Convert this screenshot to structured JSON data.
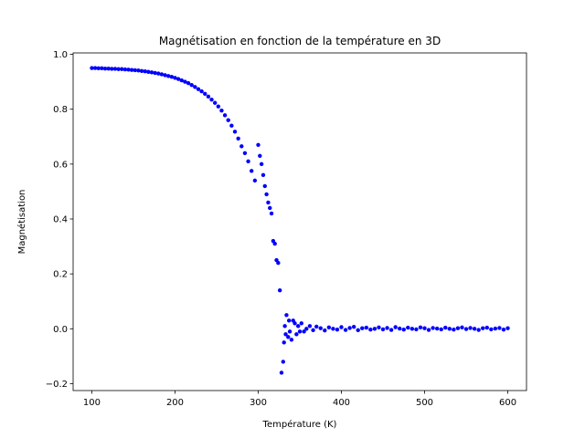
{
  "chart_data": {
    "type": "scatter",
    "title": "Magnétisation en fonction de la température en 3D",
    "xlabel": "Température (K)",
    "ylabel": "Magnétisation",
    "xlim": [
      77.5,
      622.5
    ],
    "ylim": [
      -0.225,
      1.005
    ],
    "xticks": [
      100,
      200,
      300,
      400,
      500,
      600
    ],
    "yticks": [
      -0.2,
      0.0,
      0.2,
      0.4,
      0.6,
      0.8,
      1.0
    ],
    "xtick_labels": [
      "100",
      "200",
      "300",
      "400",
      "500",
      "600"
    ],
    "ytick_labels": [
      "−0.2",
      "0.0",
      "0.2",
      "0.4",
      "0.6",
      "0.8",
      "1.0"
    ],
    "grid": false,
    "series": [
      {
        "color": "#0000ff",
        "x": [
          100,
          104,
          108,
          112,
          116,
          120,
          124,
          128,
          132,
          136,
          140,
          144,
          148,
          152,
          156,
          160,
          164,
          168,
          172,
          176,
          180,
          184,
          188,
          192,
          196,
          200,
          204,
          208,
          212,
          216,
          220,
          224,
          228,
          232,
          236,
          240,
          244,
          248,
          252,
          256,
          260,
          264,
          268,
          272,
          276,
          280,
          284,
          288,
          292,
          296,
          300,
          302,
          304,
          306,
          308,
          310,
          312,
          314,
          316,
          318,
          320,
          322,
          324,
          326,
          328,
          330,
          331,
          332,
          333,
          334,
          336,
          337,
          338,
          340,
          342,
          344,
          346,
          348,
          350,
          352,
          355,
          358,
          362,
          366,
          370,
          375,
          380,
          385,
          390,
          395,
          400,
          405,
          410,
          415,
          420,
          425,
          430,
          435,
          440,
          445,
          450,
          455,
          460,
          465,
          470,
          475,
          480,
          485,
          490,
          495,
          500,
          505,
          510,
          515,
          520,
          525,
          530,
          535,
          540,
          545,
          550,
          555,
          560,
          565,
          570,
          575,
          580,
          585,
          590,
          595,
          600
        ],
        "y": [
          0.95,
          0.95,
          0.949,
          0.949,
          0.948,
          0.948,
          0.947,
          0.947,
          0.946,
          0.946,
          0.945,
          0.944,
          0.943,
          0.942,
          0.941,
          0.939,
          0.938,
          0.936,
          0.934,
          0.932,
          0.93,
          0.927,
          0.924,
          0.921,
          0.918,
          0.914,
          0.91,
          0.905,
          0.9,
          0.895,
          0.888,
          0.881,
          0.873,
          0.865,
          0.856,
          0.846,
          0.835,
          0.823,
          0.81,
          0.795,
          0.778,
          0.76,
          0.74,
          0.718,
          0.693,
          0.665,
          0.64,
          0.61,
          0.575,
          0.54,
          0.67,
          0.63,
          0.6,
          0.56,
          0.52,
          0.49,
          0.46,
          0.44,
          0.42,
          0.32,
          0.31,
          0.25,
          0.24,
          0.14,
          -0.16,
          -0.12,
          -0.05,
          0.01,
          -0.02,
          0.05,
          -0.03,
          0.03,
          -0.01,
          -0.04,
          0.03,
          0.02,
          -0.02,
          0.01,
          -0.01,
          0.02,
          -0.01,
          0.0,
          0.01,
          -0.005,
          0.008,
          0.002,
          -0.006,
          0.005,
          0.0,
          -0.003,
          0.006,
          -0.004,
          0.003,
          0.007,
          -0.005,
          0.002,
          0.004,
          -0.003,
          0.0,
          0.005,
          -0.002,
          0.003,
          -0.004,
          0.006,
          0.001,
          -0.003,
          0.004,
          0.0,
          -0.002,
          0.005,
          0.002,
          -0.004,
          0.003,
          0.001,
          -0.002,
          0.004,
          0.0,
          -0.003,
          0.002,
          0.005,
          -0.001,
          0.003,
          0.0,
          -0.004,
          0.002,
          0.004,
          -0.002,
          0.001,
          0.003,
          -0.003,
          0.002
        ]
      }
    ]
  }
}
